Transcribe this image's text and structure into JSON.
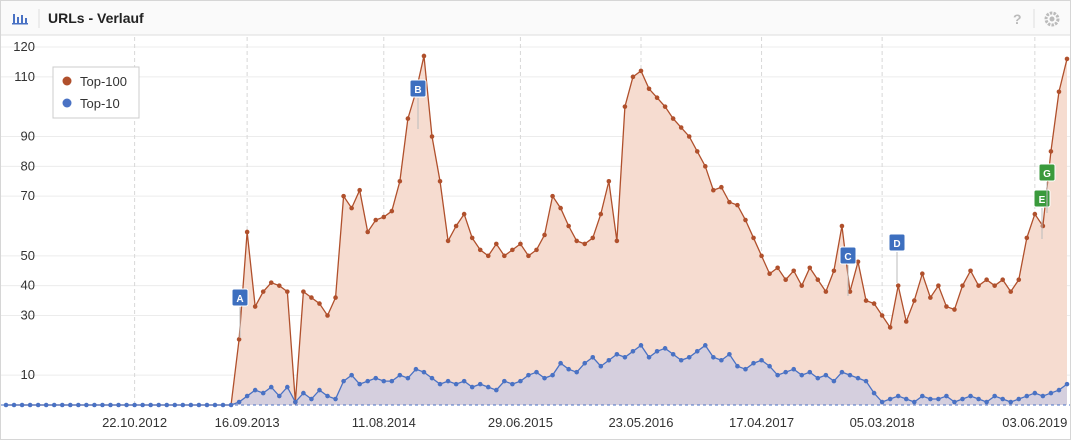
{
  "header": {
    "title": "URLs - Verlauf",
    "help": "?"
  },
  "chart_data": {
    "type": "area",
    "categories": [
      null,
      null,
      null,
      null,
      null,
      null,
      null,
      null,
      null,
      null,
      null,
      null,
      null,
      null,
      null,
      null,
      "22.10.2012",
      null,
      null,
      null,
      null,
      null,
      null,
      null,
      null,
      null,
      null,
      null,
      null,
      null,
      "16.09.2013",
      null,
      null,
      null,
      null,
      null,
      null,
      null,
      null,
      null,
      null,
      null,
      null,
      null,
      null,
      null,
      null,
      "11.08.2014",
      null,
      null,
      null,
      null,
      null,
      null,
      null,
      null,
      null,
      null,
      null,
      null,
      null,
      null,
      null,
      null,
      "29.06.2015",
      null,
      null,
      null,
      null,
      null,
      null,
      null,
      null,
      null,
      null,
      null,
      null,
      null,
      null,
      "23.05.2016",
      null,
      null,
      null,
      null,
      null,
      null,
      null,
      null,
      null,
      null,
      null,
      null,
      null,
      null,
      "17.04.2017",
      null,
      null,
      null,
      null,
      null,
      null,
      null,
      null,
      null,
      null,
      null,
      null,
      null,
      null,
      "05.03.2018",
      null,
      null,
      null,
      null,
      null,
      null,
      null,
      null,
      null,
      null,
      null,
      null,
      null,
      null,
      null,
      null,
      null,
      null,
      "03.06.2019",
      null,
      null,
      null,
      null
    ],
    "series": [
      {
        "name": "Top-100",
        "color": "#b0502c",
        "fill": "#f6dcd0",
        "values": [
          0,
          0,
          0,
          0,
          0,
          0,
          0,
          0,
          0,
          0,
          0,
          0,
          0,
          0,
          0,
          0,
          0,
          0,
          0,
          0,
          0,
          0,
          0,
          0,
          0,
          0,
          0,
          0,
          0,
          22,
          58,
          33,
          38,
          41,
          40,
          38,
          1,
          38,
          36,
          34,
          30,
          36,
          70,
          66,
          72,
          58,
          62,
          63,
          65,
          75,
          96,
          105,
          117,
          90,
          75,
          55,
          60,
          64,
          56,
          52,
          50,
          54,
          50,
          52,
          54,
          50,
          52,
          57,
          70,
          66,
          60,
          55,
          54,
          56,
          64,
          75,
          55,
          100,
          110,
          112,
          106,
          103,
          100,
          96,
          93,
          90,
          85,
          80,
          72,
          73,
          68,
          67,
          62,
          56,
          50,
          44,
          46,
          42,
          45,
          40,
          46,
          42,
          38,
          45,
          60,
          38,
          48,
          35,
          34,
          30,
          26,
          40,
          28,
          35,
          44,
          36,
          40,
          33,
          32,
          40,
          45,
          40,
          42,
          40,
          42,
          38,
          42,
          56,
          64,
          60,
          85,
          105,
          116
        ]
      },
      {
        "name": "Top-10",
        "color": "#4a72c4",
        "fill": "#cfcde0",
        "values": [
          0,
          0,
          0,
          0,
          0,
          0,
          0,
          0,
          0,
          0,
          0,
          0,
          0,
          0,
          0,
          0,
          0,
          0,
          0,
          0,
          0,
          0,
          0,
          0,
          0,
          0,
          0,
          0,
          0,
          1,
          3,
          5,
          4,
          6,
          3,
          6,
          1,
          4,
          2,
          5,
          3,
          2,
          8,
          10,
          7,
          8,
          9,
          8,
          8,
          10,
          9,
          12,
          11,
          9,
          7,
          8,
          7,
          8,
          6,
          7,
          6,
          5,
          8,
          7,
          8,
          10,
          11,
          9,
          10,
          14,
          12,
          11,
          14,
          16,
          13,
          15,
          17,
          16,
          18,
          20,
          16,
          18,
          19,
          17,
          15,
          16,
          18,
          20,
          16,
          15,
          17,
          13,
          12,
          14,
          15,
          13,
          10,
          11,
          12,
          10,
          11,
          9,
          10,
          8,
          11,
          10,
          9,
          8,
          4,
          1,
          2,
          3,
          2,
          1,
          3,
          2,
          2,
          3,
          1,
          2,
          3,
          2,
          1,
          3,
          2,
          1,
          2,
          3,
          4,
          3,
          4,
          5,
          7
        ]
      }
    ],
    "annotations": [
      "A",
      "B",
      "C",
      "D",
      "E",
      "G"
    ],
    "ylim": [
      0,
      120
    ],
    "yticks": [
      10,
      30,
      40,
      50,
      70,
      80,
      90,
      110,
      120
    ],
    "grid": true
  }
}
